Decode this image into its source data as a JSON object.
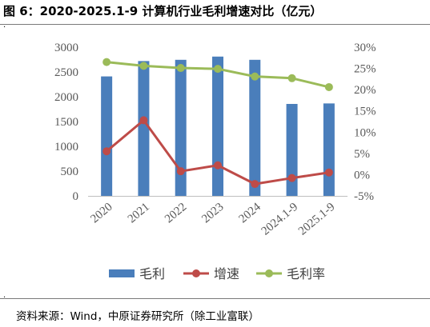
{
  "figure": {
    "title": "图 6：2020-2025.1-9 计算机行业毛利增速对比（亿元）",
    "source": "资料来源：Wind，中原证券研究所（除工业富联）",
    "bullet_glyph": "."
  },
  "chart_data": {
    "type": "bar",
    "title": "",
    "xlabel": "",
    "ylabel": "",
    "categories": [
      "2020",
      "2021",
      "2022",
      "2023",
      "2024",
      "2024.1-9",
      "2025.1-9"
    ],
    "left_axis": {
      "min": 0,
      "max": 3000,
      "step": 500,
      "ticks": [
        "0",
        "500",
        "1000",
        "1500",
        "2000",
        "2500",
        "3000"
      ]
    },
    "right_axis": {
      "min": -5,
      "max": 30,
      "step": 5,
      "unit": "%",
      "ticks": [
        "-5%",
        "0%",
        "5%",
        "10%",
        "15%",
        "20%",
        "25%",
        "30%"
      ]
    },
    "series": [
      {
        "name": "毛利",
        "type": "bar",
        "axis": "left",
        "color": "#4a7ebb",
        "values": [
          2410,
          2720,
          2745,
          2810,
          2745,
          1855,
          1865
        ]
      },
      {
        "name": "增速",
        "type": "line",
        "axis": "right",
        "color": "#be4b48",
        "values": [
          5.5,
          12.8,
          0.8,
          2.2,
          -2.2,
          -0.8,
          0.5
        ]
      },
      {
        "name": "毛利率",
        "type": "line",
        "axis": "right",
        "color": "#9bbb59",
        "values": [
          26.5,
          25.6,
          25.1,
          24.9,
          23.1,
          22.7,
          20.6
        ]
      }
    ],
    "grid": false,
    "legend_position": "bottom"
  }
}
